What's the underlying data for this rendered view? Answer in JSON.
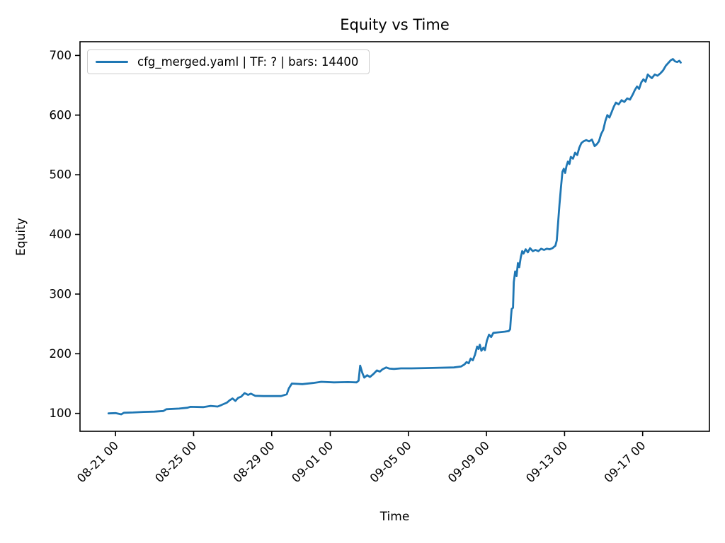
{
  "chart": {
    "title": "Equity vs Time",
    "xlabel": "Time",
    "ylabel": "Equity",
    "legend_label": "cfg_merged.yaml | TF: ? | bars: 14400"
  },
  "chart_data": {
    "type": "line",
    "title": "Equity vs Time",
    "xlabel": "Time",
    "ylabel": "Equity",
    "grid": false,
    "legend_position": "upper left",
    "legend_entries": [
      "cfg_merged.yaml | TF: ? | bars: 14400"
    ],
    "line_color": "#1f77b4",
    "x_unit": "days since 08-20 00:00",
    "xlim": [
      -0.82,
      31.42
    ],
    "ylim": [
      70,
      723
    ],
    "y_ticks": [
      100,
      200,
      300,
      400,
      500,
      600,
      700
    ],
    "x_ticks": [
      {
        "t": 1,
        "label": "08-21 00"
      },
      {
        "t": 5,
        "label": "08-25 00"
      },
      {
        "t": 9,
        "label": "08-29 00"
      },
      {
        "t": 12,
        "label": "09-01 00"
      },
      {
        "t": 16,
        "label": "09-05 00"
      },
      {
        "t": 20,
        "label": "09-09 00"
      },
      {
        "t": 24,
        "label": "09-13 00"
      },
      {
        "t": 28,
        "label": "09-17 00"
      }
    ],
    "series": [
      {
        "name": "cfg_merged.yaml | TF: ? | bars: 14400",
        "points": [
          [
            0.64,
            100
          ],
          [
            1.0,
            100.5
          ],
          [
            1.29,
            98.5
          ],
          [
            1.43,
            101
          ],
          [
            1.9,
            101.5
          ],
          [
            2.44,
            102.5
          ],
          [
            2.99,
            103
          ],
          [
            3.45,
            104
          ],
          [
            3.6,
            107
          ],
          [
            4.25,
            108
          ],
          [
            4.68,
            109.5
          ],
          [
            4.83,
            111
          ],
          [
            5.51,
            110.5
          ],
          [
            5.87,
            112.5
          ],
          [
            6.23,
            111.5
          ],
          [
            6.42,
            114
          ],
          [
            6.7,
            118
          ],
          [
            6.85,
            122
          ],
          [
            6.99,
            125
          ],
          [
            7.14,
            121
          ],
          [
            7.28,
            126
          ],
          [
            7.43,
            128
          ],
          [
            7.61,
            134
          ],
          [
            7.79,
            131
          ],
          [
            7.93,
            133
          ],
          [
            8.15,
            129.5
          ],
          [
            8.58,
            129
          ],
          [
            9.48,
            129
          ],
          [
            9.77,
            132
          ],
          [
            9.88,
            142
          ],
          [
            10.03,
            150
          ],
          [
            10.57,
            149
          ],
          [
            11.11,
            151
          ],
          [
            11.54,
            153
          ],
          [
            12.19,
            152
          ],
          [
            12.91,
            152.5
          ],
          [
            13.35,
            152
          ],
          [
            13.45,
            155
          ],
          [
            13.53,
            180
          ],
          [
            13.64,
            168
          ],
          [
            13.74,
            160
          ],
          [
            13.89,
            164
          ],
          [
            14.03,
            161
          ],
          [
            14.21,
            166
          ],
          [
            14.39,
            172
          ],
          [
            14.54,
            170
          ],
          [
            14.68,
            174
          ],
          [
            14.86,
            177
          ],
          [
            15.04,
            175
          ],
          [
            15.26,
            174.5
          ],
          [
            15.62,
            175.5
          ],
          [
            16.16,
            175.5
          ],
          [
            16.88,
            176
          ],
          [
            17.61,
            176.5
          ],
          [
            18.33,
            177
          ],
          [
            18.69,
            178.5
          ],
          [
            18.87,
            182
          ],
          [
            18.98,
            186
          ],
          [
            19.09,
            184
          ],
          [
            19.19,
            192
          ],
          [
            19.3,
            189
          ],
          [
            19.41,
            198
          ],
          [
            19.52,
            212
          ],
          [
            19.59,
            208
          ],
          [
            19.66,
            215
          ],
          [
            19.74,
            205
          ],
          [
            19.84,
            210
          ],
          [
            19.92,
            206
          ],
          [
            20.02,
            222
          ],
          [
            20.13,
            232
          ],
          [
            20.24,
            228
          ],
          [
            20.35,
            235
          ],
          [
            20.67,
            236
          ],
          [
            20.93,
            237
          ],
          [
            21.14,
            238
          ],
          [
            21.21,
            241
          ],
          [
            21.25,
            260
          ],
          [
            21.29,
            275
          ],
          [
            21.36,
            277
          ],
          [
            21.4,
            320
          ],
          [
            21.47,
            338
          ],
          [
            21.54,
            330
          ],
          [
            21.61,
            352
          ],
          [
            21.68,
            345
          ],
          [
            21.76,
            362
          ],
          [
            21.83,
            372
          ],
          [
            21.9,
            368
          ],
          [
            22.01,
            375
          ],
          [
            22.12,
            370
          ],
          [
            22.23,
            377
          ],
          [
            22.37,
            372
          ],
          [
            22.51,
            374
          ],
          [
            22.66,
            372
          ],
          [
            22.8,
            376
          ],
          [
            22.95,
            374
          ],
          [
            23.09,
            376
          ],
          [
            23.24,
            375
          ],
          [
            23.38,
            377
          ],
          [
            23.53,
            381
          ],
          [
            23.6,
            390
          ],
          [
            23.67,
            420
          ],
          [
            23.74,
            450
          ],
          [
            23.82,
            480
          ],
          [
            23.89,
            505
          ],
          [
            23.96,
            510
          ],
          [
            24.03,
            503
          ],
          [
            24.1,
            515
          ],
          [
            24.17,
            522
          ],
          [
            24.25,
            518
          ],
          [
            24.32,
            530
          ],
          [
            24.43,
            527
          ],
          [
            24.54,
            537
          ],
          [
            24.65,
            533
          ],
          [
            24.75,
            545
          ],
          [
            24.86,
            553
          ],
          [
            24.97,
            556
          ],
          [
            25.11,
            558
          ],
          [
            25.26,
            556
          ],
          [
            25.4,
            559
          ],
          [
            25.54,
            548
          ],
          [
            25.65,
            551
          ],
          [
            25.76,
            556
          ],
          [
            25.87,
            568
          ],
          [
            25.98,
            575
          ],
          [
            26.09,
            590
          ],
          [
            26.19,
            600
          ],
          [
            26.3,
            596
          ],
          [
            26.41,
            605
          ],
          [
            26.52,
            614
          ],
          [
            26.63,
            621
          ],
          [
            26.77,
            618
          ],
          [
            26.92,
            625
          ],
          [
            27.06,
            622
          ],
          [
            27.21,
            628
          ],
          [
            27.35,
            626
          ],
          [
            27.5,
            635
          ],
          [
            27.6,
            642
          ],
          [
            27.71,
            648
          ],
          [
            27.82,
            644
          ],
          [
            27.93,
            655
          ],
          [
            28.04,
            660
          ],
          [
            28.15,
            656
          ],
          [
            28.26,
            668
          ],
          [
            28.36,
            665
          ],
          [
            28.47,
            662
          ],
          [
            28.62,
            668
          ],
          [
            28.76,
            666
          ],
          [
            28.91,
            670
          ],
          [
            29.05,
            675
          ],
          [
            29.19,
            683
          ],
          [
            29.33,
            688
          ],
          [
            29.44,
            692
          ],
          [
            29.55,
            694
          ],
          [
            29.66,
            690
          ],
          [
            29.77,
            689
          ],
          [
            29.88,
            691
          ],
          [
            29.95,
            688
          ]
        ]
      }
    ]
  }
}
